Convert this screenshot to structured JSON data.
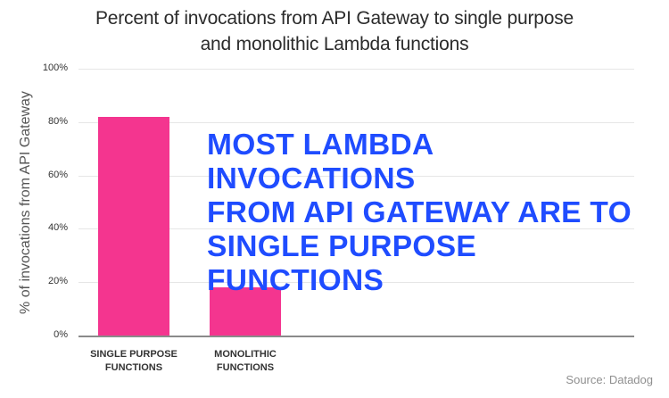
{
  "chart_data": {
    "type": "bar",
    "title": "Percent of invocations from API Gateway to single purpose and monolithic Lambda functions",
    "title_lines": [
      "Percent of invocations from API Gateway to single purpose",
      "and monolithic Lambda functions"
    ],
    "xlabel": "",
    "ylabel": "% of invocations from API Gateway",
    "categories": [
      "SINGLE PURPOSE FUNCTIONS",
      "MONOLITHIC FUNCTIONS"
    ],
    "category_lines": [
      [
        "SINGLE PURPOSE",
        "FUNCTIONS"
      ],
      [
        "MONOLITHIC",
        "FUNCTIONS"
      ]
    ],
    "values": [
      82,
      18
    ],
    "ylim": [
      0,
      100
    ],
    "yticks": [
      "0%",
      "20%",
      "40%",
      "60%",
      "80%",
      "100%"
    ],
    "grid": true,
    "legend": null,
    "bar_color": "#f4358f",
    "annotation": {
      "lines": [
        "MOST LAMBDA INVOCATIONS",
        "FROM API GATEWAY ARE TO",
        "SINGLE PURPOSE FUNCTIONS"
      ],
      "color": "#1f4cff"
    },
    "source": "Source: Datadog"
  }
}
